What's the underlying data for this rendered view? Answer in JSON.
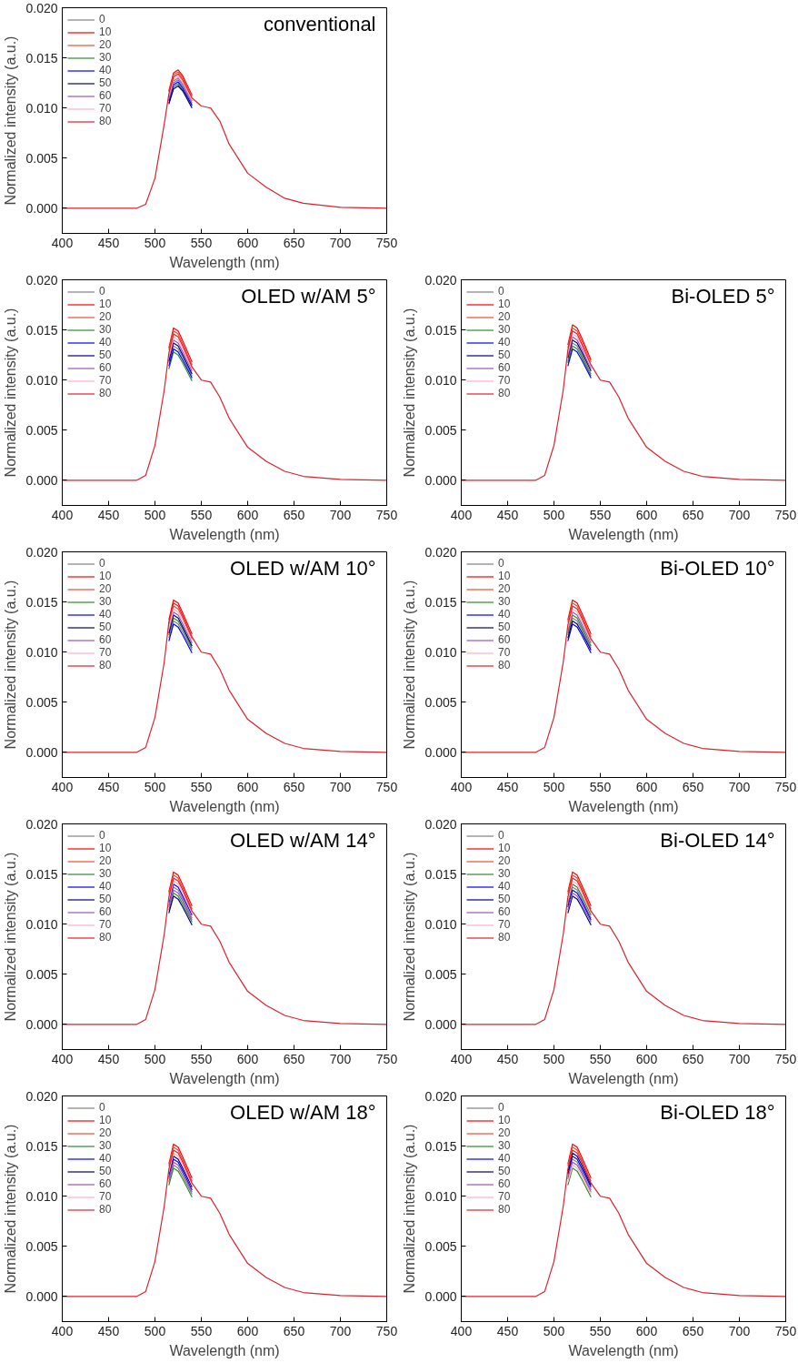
{
  "chart_data": [
    {
      "type": "line",
      "title": "conventional",
      "xlabel": "Wavelength (nm)",
      "ylabel": "Normalized intensity (a.u.)",
      "legend": "top left",
      "xlim": [
        400,
        750
      ],
      "xticks": [
        400,
        450,
        500,
        550,
        600,
        650,
        700,
        750
      ],
      "ylim": [
        -0.0025,
        0.02
      ],
      "yticks": [
        {
          "value": 0,
          "label": "0.000"
        },
        {
          "value": 0.005,
          "label": "0.005"
        },
        {
          "value": 0.01,
          "label": "0.010"
        },
        {
          "value": 0.015,
          "label": "0.015"
        },
        {
          "value": 0.02,
          "label": "0.020"
        }
      ],
      "x": [
        400,
        480,
        490,
        500,
        510,
        515,
        520,
        525,
        530,
        540,
        550,
        560,
        570,
        580,
        600,
        620,
        640,
        660,
        700,
        750
      ],
      "series": [
        {
          "name": "0",
          "color": "#808080",
          "x": [
            515,
            520,
            525,
            530,
            540
          ],
          "values": [
            0.0111,
            0.0127,
            0.013,
            0.0124,
            0.0107
          ]
        },
        {
          "name": "10",
          "color": "#ff0000",
          "x": [
            515,
            520,
            525,
            530,
            540
          ],
          "values": [
            0.0117,
            0.0135,
            0.0138,
            0.0132,
            0.0113
          ]
        },
        {
          "name": "20",
          "color": "#f04b32",
          "x": [
            515,
            520,
            525,
            530,
            540
          ],
          "values": [
            0.0116,
            0.0133,
            0.0136,
            0.013,
            0.0112
          ]
        },
        {
          "name": "30",
          "color": "#2e8b2e",
          "x": [
            515,
            520,
            525,
            530,
            540
          ],
          "values": [
            0.0105,
            0.0121,
            0.0124,
            0.0118,
            0.0102
          ]
        },
        {
          "name": "40",
          "color": "#0000ff",
          "x": [
            515,
            520,
            525,
            530,
            540
          ],
          "values": [
            0.0107,
            0.0123,
            0.0126,
            0.012,
            0.0103
          ]
        },
        {
          "name": "50",
          "color": "#000080",
          "x": [
            515,
            520,
            525,
            530,
            540
          ],
          "values": [
            0.0104,
            0.0119,
            0.0122,
            0.0117,
            0.01
          ]
        },
        {
          "name": "60",
          "color": "#9955bb",
          "x": [
            515,
            520,
            525,
            530,
            540
          ],
          "values": [
            0.0109,
            0.0125,
            0.0128,
            0.0122,
            0.0105
          ]
        },
        {
          "name": "70",
          "color": "#ffb0c4",
          "x": [
            515,
            520,
            525,
            530,
            540
          ],
          "values": [
            0.0112,
            0.0129,
            0.0132,
            0.0126,
            0.0108
          ]
        },
        {
          "name": "80",
          "color": "#e0202c",
          "values": [
            0,
            0,
            0.0004,
            0.003,
            0.0084,
            0.0114,
            0.0131,
            0.0134,
            0.0128,
            0.011,
            0.0102,
            0.01,
            0.0087,
            0.0064,
            0.0035,
            0.0021,
            0.001,
            0.0005,
            0.0001,
            0
          ]
        }
      ]
    },
    {
      "type": "line",
      "title": "OLED w/AM 5°",
      "xlabel": "Wavelength (nm)",
      "ylabel": "Normalized intensity (a.u.)",
      "legend": "top left",
      "xlim": [
        400,
        750
      ],
      "xticks": [
        400,
        450,
        500,
        550,
        600,
        650,
        700,
        750
      ],
      "ylim": [
        -0.0025,
        0.02
      ],
      "yticks": [
        {
          "value": 0,
          "label": "0.000"
        },
        {
          "value": 0.005,
          "label": "0.005"
        },
        {
          "value": 0.01,
          "label": "0.010"
        },
        {
          "value": 0.015,
          "label": "0.015"
        },
        {
          "value": 0.02,
          "label": "0.020"
        }
      ],
      "x": [
        400,
        480,
        490,
        500,
        510,
        515,
        520,
        525,
        530,
        540,
        550,
        560,
        570,
        580,
        600,
        620,
        640,
        660,
        700,
        750
      ],
      "series": [
        {
          "name": "0",
          "color": "#808080",
          "x": [
            515,
            520,
            525,
            530,
            540
          ],
          "values": [
            0.0117,
            0.0134,
            0.0131,
            0.0123,
            0.0104
          ]
        },
        {
          "name": "10",
          "color": "#ff0000",
          "x": [
            515,
            520,
            525,
            530,
            540
          ],
          "values": [
            0.0132,
            0.0152,
            0.0149,
            0.0139,
            0.0118
          ]
        },
        {
          "name": "20",
          "color": "#f04b32",
          "x": [
            515,
            520,
            525,
            530,
            540
          ],
          "values": [
            0.013,
            0.0149,
            0.0146,
            0.0136,
            0.0115
          ]
        },
        {
          "name": "30",
          "color": "#2e8b2e",
          "x": [
            515,
            520,
            525,
            530,
            540
          ],
          "values": [
            0.0111,
            0.0128,
            0.0125,
            0.0117,
            0.0099
          ]
        },
        {
          "name": "40",
          "color": "#0000ff",
          "x": [
            515,
            520,
            525,
            530,
            540
          ],
          "values": [
            0.0114,
            0.0131,
            0.0128,
            0.012,
            0.0102
          ]
        },
        {
          "name": "50",
          "color": "#000080",
          "x": [
            515,
            520,
            525,
            530,
            540
          ],
          "values": [
            0.0119,
            0.0137,
            0.0134,
            0.0125,
            0.0106
          ]
        },
        {
          "name": "60",
          "color": "#9955bb",
          "x": [
            515,
            520,
            525,
            530,
            540
          ],
          "values": [
            0.0122,
            0.014,
            0.0137,
            0.0128,
            0.0109
          ]
        },
        {
          "name": "70",
          "color": "#ffb0c4",
          "x": [
            515,
            520,
            525,
            530,
            540
          ],
          "values": [
            0.0124,
            0.0143,
            0.014,
            0.0131,
            0.0111
          ]
        },
        {
          "name": "80",
          "color": "#e0202c",
          "values": [
            0,
            0,
            0.0005,
            0.0035,
            0.009,
            0.0127,
            0.0146,
            0.0143,
            0.0134,
            0.0113,
            0.01,
            0.0098,
            0.0083,
            0.0062,
            0.0033,
            0.0019,
            0.0009,
            0.0004,
            0.0001,
            0
          ]
        }
      ]
    },
    {
      "type": "line",
      "title": "Bi-OLED 5°",
      "xlabel": "Wavelength (nm)",
      "ylabel": "Normalized intensity (a.u.)",
      "legend": "top left",
      "xlim": [
        400,
        750
      ],
      "xticks": [
        400,
        450,
        500,
        550,
        600,
        650,
        700,
        750
      ],
      "ylim": [
        -0.0025,
        0.02
      ],
      "yticks": [
        {
          "value": 0,
          "label": "0.000"
        },
        {
          "value": 0.005,
          "label": "0.005"
        },
        {
          "value": 0.01,
          "label": "0.010"
        },
        {
          "value": 0.015,
          "label": "0.015"
        },
        {
          "value": 0.02,
          "label": "0.020"
        }
      ],
      "x": [
        400,
        480,
        490,
        500,
        510,
        515,
        520,
        525,
        530,
        540,
        550,
        560,
        570,
        580,
        600,
        620,
        640,
        660,
        700,
        750
      ],
      "series": [
        {
          "name": "0",
          "color": "#808080",
          "x": [
            515,
            520,
            525,
            530,
            540
          ],
          "values": [
            0.0119,
            0.0137,
            0.0134,
            0.0125,
            0.0106
          ]
        },
        {
          "name": "10",
          "color": "#ff0000",
          "x": [
            515,
            520,
            525,
            530,
            540
          ],
          "values": [
            0.0135,
            0.0155,
            0.0152,
            0.0142,
            0.012
          ]
        },
        {
          "name": "20",
          "color": "#f04b32",
          "x": [
            515,
            520,
            525,
            530,
            540
          ],
          "values": [
            0.0132,
            0.0152,
            0.0149,
            0.0139,
            0.0118
          ]
        },
        {
          "name": "30",
          "color": "#2e8b2e",
          "x": [
            515,
            520,
            525,
            530,
            540
          ],
          "values": [
            0.0117,
            0.0134,
            0.0131,
            0.0123,
            0.0104
          ]
        },
        {
          "name": "40",
          "color": "#0000ff",
          "x": [
            515,
            520,
            525,
            530,
            540
          ],
          "values": [
            0.0114,
            0.0131,
            0.0128,
            0.012,
            0.0102
          ]
        },
        {
          "name": "50",
          "color": "#000080",
          "x": [
            515,
            520,
            525,
            530,
            540
          ],
          "values": [
            0.0122,
            0.014,
            0.0137,
            0.0128,
            0.0109
          ]
        },
        {
          "name": "60",
          "color": "#9955bb",
          "x": [
            515,
            520,
            525,
            530,
            540
          ],
          "values": [
            0.0124,
            0.0143,
            0.014,
            0.0131,
            0.0111
          ]
        },
        {
          "name": "70",
          "color": "#ffb0c4",
          "x": [
            515,
            520,
            525,
            530,
            540
          ],
          "values": [
            0.0127,
            0.0146,
            0.0143,
            0.0134,
            0.0113
          ]
        },
        {
          "name": "80",
          "color": "#e0202c",
          "values": [
            0,
            0,
            0.0005,
            0.0035,
            0.009,
            0.013,
            0.0149,
            0.0146,
            0.0136,
            0.0115,
            0.01,
            0.0098,
            0.0083,
            0.0062,
            0.0033,
            0.0019,
            0.0009,
            0.0004,
            0.0001,
            0
          ]
        }
      ]
    },
    {
      "type": "line",
      "title": "OLED w/AM 10°",
      "xlabel": "Wavelength (nm)",
      "ylabel": "Normalized intensity (a.u.)",
      "legend": "top left",
      "xlim": [
        400,
        750
      ],
      "xticks": [
        400,
        450,
        500,
        550,
        600,
        650,
        700,
        750
      ],
      "ylim": [
        -0.0025,
        0.02
      ],
      "yticks": [
        {
          "value": 0,
          "label": "0.000"
        },
        {
          "value": 0.005,
          "label": "0.005"
        },
        {
          "value": 0.01,
          "label": "0.010"
        },
        {
          "value": 0.015,
          "label": "0.015"
        },
        {
          "value": 0.02,
          "label": "0.020"
        }
      ],
      "x": [
        400,
        480,
        490,
        500,
        510,
        515,
        520,
        525,
        530,
        540,
        550,
        560,
        570,
        580,
        600,
        620,
        640,
        660,
        700,
        750
      ],
      "series": [
        {
          "name": "0",
          "color": "#808080",
          "x": [
            515,
            520,
            525,
            530,
            540
          ],
          "values": [
            0.0114,
            0.0131,
            0.0128,
            0.012,
            0.0102
          ]
        },
        {
          "name": "10",
          "color": "#ff0000",
          "x": [
            515,
            520,
            525,
            530,
            540
          ],
          "values": [
            0.0132,
            0.0152,
            0.0149,
            0.0139,
            0.0118
          ]
        },
        {
          "name": "20",
          "color": "#f04b32",
          "x": [
            515,
            520,
            525,
            530,
            540
          ],
          "values": [
            0.0127,
            0.0146,
            0.0143,
            0.0134,
            0.0113
          ]
        },
        {
          "name": "30",
          "color": "#2e8b2e",
          "x": [
            515,
            520,
            525,
            530,
            540
          ],
          "values": [
            0.0117,
            0.0134,
            0.0131,
            0.0123,
            0.0104
          ]
        },
        {
          "name": "40",
          "color": "#0000ff",
          "x": [
            515,
            520,
            525,
            530,
            540
          ],
          "values": [
            0.0111,
            0.0128,
            0.0125,
            0.0117,
            0.0099
          ]
        },
        {
          "name": "50",
          "color": "#000080",
          "x": [
            515,
            520,
            525,
            530,
            540
          ],
          "values": [
            0.0119,
            0.0137,
            0.0134,
            0.0125,
            0.0106
          ]
        },
        {
          "name": "60",
          "color": "#9955bb",
          "x": [
            515,
            520,
            525,
            530,
            540
          ],
          "values": [
            0.0122,
            0.014,
            0.0137,
            0.0128,
            0.0109
          ]
        },
        {
          "name": "70",
          "color": "#ffb0c4",
          "x": [
            515,
            520,
            525,
            530,
            540
          ],
          "values": [
            0.0124,
            0.0143,
            0.014,
            0.0131,
            0.0111
          ]
        },
        {
          "name": "80",
          "color": "#e0202c",
          "values": [
            0,
            0,
            0.0005,
            0.0035,
            0.009,
            0.013,
            0.0149,
            0.0146,
            0.0136,
            0.0115,
            0.01,
            0.0098,
            0.0083,
            0.0062,
            0.0033,
            0.0019,
            0.0009,
            0.0004,
            0.0001,
            0
          ]
        }
      ]
    },
    {
      "type": "line",
      "title": "Bi-OLED 10°",
      "xlabel": "Wavelength (nm)",
      "ylabel": "Normalized intensity (a.u.)",
      "legend": "top left",
      "xlim": [
        400,
        750
      ],
      "xticks": [
        400,
        450,
        500,
        550,
        600,
        650,
        700,
        750
      ],
      "ylim": [
        -0.0025,
        0.02
      ],
      "yticks": [
        {
          "value": 0,
          "label": "0.000"
        },
        {
          "value": 0.005,
          "label": "0.005"
        },
        {
          "value": 0.01,
          "label": "0.010"
        },
        {
          "value": 0.015,
          "label": "0.015"
        },
        {
          "value": 0.02,
          "label": "0.020"
        }
      ],
      "x": [
        400,
        480,
        490,
        500,
        510,
        515,
        520,
        525,
        530,
        540,
        550,
        560,
        570,
        580,
        600,
        620,
        640,
        660,
        700,
        750
      ],
      "series": [
        {
          "name": "0",
          "color": "#808080",
          "x": [
            515,
            520,
            525,
            530,
            540
          ],
          "values": [
            0.0117,
            0.0134,
            0.0131,
            0.0123,
            0.0104
          ]
        },
        {
          "name": "10",
          "color": "#ff0000",
          "x": [
            515,
            520,
            525,
            530,
            540
          ],
          "values": [
            0.0132,
            0.0152,
            0.0149,
            0.0139,
            0.0118
          ]
        },
        {
          "name": "20",
          "color": "#f04b32",
          "x": [
            515,
            520,
            525,
            530,
            540
          ],
          "values": [
            0.013,
            0.0149,
            0.0146,
            0.0136,
            0.0115
          ]
        },
        {
          "name": "30",
          "color": "#2e8b2e",
          "x": [
            515,
            520,
            525,
            530,
            540
          ],
          "values": [
            0.0119,
            0.0137,
            0.0134,
            0.0125,
            0.0106
          ]
        },
        {
          "name": "40",
          "color": "#0000ff",
          "x": [
            515,
            520,
            525,
            530,
            540
          ],
          "values": [
            0.0111,
            0.0128,
            0.0125,
            0.0117,
            0.0099
          ]
        },
        {
          "name": "50",
          "color": "#000080",
          "x": [
            515,
            520,
            525,
            530,
            540
          ],
          "values": [
            0.0114,
            0.0131,
            0.0128,
            0.012,
            0.0102
          ]
        },
        {
          "name": "60",
          "color": "#9955bb",
          "x": [
            515,
            520,
            525,
            530,
            540
          ],
          "values": [
            0.0122,
            0.014,
            0.0137,
            0.0128,
            0.0109
          ]
        },
        {
          "name": "70",
          "color": "#ffb0c4",
          "x": [
            515,
            520,
            525,
            530,
            540
          ],
          "values": [
            0.0124,
            0.0143,
            0.014,
            0.0131,
            0.0111
          ]
        },
        {
          "name": "80",
          "color": "#e0202c",
          "values": [
            0,
            0,
            0.0005,
            0.0035,
            0.009,
            0.0127,
            0.0146,
            0.0143,
            0.0134,
            0.0113,
            0.01,
            0.0098,
            0.0083,
            0.0062,
            0.0033,
            0.0019,
            0.0009,
            0.0004,
            0.0001,
            0
          ]
        }
      ]
    },
    {
      "type": "line",
      "title": "OLED w/AM 14°",
      "xlabel": "Wavelength (nm)",
      "ylabel": "Normalized intensity (a.u.)",
      "legend": "top left",
      "xlim": [
        400,
        750
      ],
      "xticks": [
        400,
        450,
        500,
        550,
        600,
        650,
        700,
        750
      ],
      "ylim": [
        -0.0025,
        0.02
      ],
      "yticks": [
        {
          "value": 0,
          "label": "0.000"
        },
        {
          "value": 0.005,
          "label": "0.005"
        },
        {
          "value": 0.01,
          "label": "0.010"
        },
        {
          "value": 0.015,
          "label": "0.015"
        },
        {
          "value": 0.02,
          "label": "0.020"
        }
      ],
      "x": [
        400,
        480,
        490,
        500,
        510,
        515,
        520,
        525,
        530,
        540,
        550,
        560,
        570,
        580,
        600,
        620,
        640,
        660,
        700,
        750
      ],
      "series": [
        {
          "name": "0",
          "color": "#808080",
          "x": [
            515,
            520,
            525,
            530,
            540
          ],
          "values": [
            0.0119,
            0.0137,
            0.0134,
            0.0125,
            0.0106
          ]
        },
        {
          "name": "10",
          "color": "#ff0000",
          "x": [
            515,
            520,
            525,
            530,
            540
          ],
          "values": [
            0.0132,
            0.0152,
            0.0149,
            0.0139,
            0.0118
          ]
        },
        {
          "name": "20",
          "color": "#f04b32",
          "x": [
            515,
            520,
            525,
            530,
            540
          ],
          "values": [
            0.013,
            0.0149,
            0.0146,
            0.0136,
            0.0115
          ]
        },
        {
          "name": "30",
          "color": "#2e8b2e",
          "x": [
            515,
            520,
            525,
            530,
            540
          ],
          "values": [
            0.0114,
            0.0131,
            0.0128,
            0.012,
            0.0102
          ]
        },
        {
          "name": "40",
          "color": "#0000ff",
          "x": [
            515,
            520,
            525,
            530,
            540
          ],
          "values": [
            0.0122,
            0.014,
            0.0137,
            0.0128,
            0.0109
          ]
        },
        {
          "name": "50",
          "color": "#000080",
          "x": [
            515,
            520,
            525,
            530,
            540
          ],
          "values": [
            0.0111,
            0.0128,
            0.0125,
            0.0117,
            0.0099
          ]
        },
        {
          "name": "60",
          "color": "#9955bb",
          "x": [
            515,
            520,
            525,
            530,
            540
          ],
          "values": [
            0.0117,
            0.0134,
            0.0131,
            0.0123,
            0.0104
          ]
        },
        {
          "name": "70",
          "color": "#ffb0c4",
          "x": [
            515,
            520,
            525,
            530,
            540
          ],
          "values": [
            0.0124,
            0.0143,
            0.014,
            0.0131,
            0.0111
          ]
        },
        {
          "name": "80",
          "color": "#e0202c",
          "values": [
            0,
            0,
            0.0005,
            0.0035,
            0.009,
            0.0127,
            0.0146,
            0.0143,
            0.0134,
            0.0113,
            0.01,
            0.0098,
            0.0083,
            0.0062,
            0.0033,
            0.0019,
            0.0009,
            0.0004,
            0.0001,
            0
          ]
        }
      ]
    },
    {
      "type": "line",
      "title": "Bi-OLED 14°",
      "xlabel": "Wavelength (nm)",
      "ylabel": "Normalized intensity (a.u.)",
      "legend": "top left",
      "xlim": [
        400,
        750
      ],
      "xticks": [
        400,
        450,
        500,
        550,
        600,
        650,
        700,
        750
      ],
      "ylim": [
        -0.0025,
        0.02
      ],
      "yticks": [
        {
          "value": 0,
          "label": "0.000"
        },
        {
          "value": 0.005,
          "label": "0.005"
        },
        {
          "value": 0.01,
          "label": "0.010"
        },
        {
          "value": 0.015,
          "label": "0.015"
        },
        {
          "value": 0.02,
          "label": "0.020"
        }
      ],
      "x": [
        400,
        480,
        490,
        500,
        510,
        515,
        520,
        525,
        530,
        540,
        550,
        560,
        570,
        580,
        600,
        620,
        640,
        660,
        700,
        750
      ],
      "series": [
        {
          "name": "0",
          "color": "#808080",
          "x": [
            515,
            520,
            525,
            530,
            540
          ],
          "values": [
            0.0119,
            0.0137,
            0.0134,
            0.0125,
            0.0106
          ]
        },
        {
          "name": "10",
          "color": "#ff0000",
          "x": [
            515,
            520,
            525,
            530,
            540
          ],
          "values": [
            0.0132,
            0.0152,
            0.0149,
            0.0139,
            0.0118
          ]
        },
        {
          "name": "20",
          "color": "#f04b32",
          "x": [
            515,
            520,
            525,
            530,
            540
          ],
          "values": [
            0.013,
            0.0149,
            0.0146,
            0.0136,
            0.0115
          ]
        },
        {
          "name": "30",
          "color": "#2e8b2e",
          "x": [
            515,
            520,
            525,
            530,
            540
          ],
          "values": [
            0.0122,
            0.014,
            0.0137,
            0.0128,
            0.0109
          ]
        },
        {
          "name": "40",
          "color": "#0000ff",
          "x": [
            515,
            520,
            525,
            530,
            540
          ],
          "values": [
            0.0117,
            0.0134,
            0.0131,
            0.0123,
            0.0104
          ]
        },
        {
          "name": "50",
          "color": "#000080",
          "x": [
            515,
            520,
            525,
            530,
            540
          ],
          "values": [
            0.0111,
            0.0128,
            0.0125,
            0.0117,
            0.0099
          ]
        },
        {
          "name": "60",
          "color": "#9955bb",
          "x": [
            515,
            520,
            525,
            530,
            540
          ],
          "values": [
            0.0114,
            0.0131,
            0.0128,
            0.012,
            0.0102
          ]
        },
        {
          "name": "70",
          "color": "#ffb0c4",
          "x": [
            515,
            520,
            525,
            530,
            540
          ],
          "values": [
            0.0124,
            0.0143,
            0.014,
            0.0131,
            0.0111
          ]
        },
        {
          "name": "80",
          "color": "#e0202c",
          "values": [
            0,
            0,
            0.0005,
            0.0035,
            0.009,
            0.0127,
            0.0146,
            0.0143,
            0.0134,
            0.0113,
            0.01,
            0.0098,
            0.0083,
            0.0062,
            0.0033,
            0.0019,
            0.0009,
            0.0004,
            0.0001,
            0
          ]
        }
      ]
    },
    {
      "type": "line",
      "title": "OLED w/AM 18°",
      "xlabel": "Wavelength (nm)",
      "ylabel": "Normalized intensity (a.u.)",
      "legend": "top left",
      "xlim": [
        400,
        750
      ],
      "xticks": [
        400,
        450,
        500,
        550,
        600,
        650,
        700,
        750
      ],
      "ylim": [
        -0.0025,
        0.02
      ],
      "yticks": [
        {
          "value": 0,
          "label": "0.000"
        },
        {
          "value": 0.005,
          "label": "0.005"
        },
        {
          "value": 0.01,
          "label": "0.010"
        },
        {
          "value": 0.015,
          "label": "0.015"
        },
        {
          "value": 0.02,
          "label": "0.020"
        }
      ],
      "x": [
        400,
        480,
        490,
        500,
        510,
        515,
        520,
        525,
        530,
        540,
        550,
        560,
        570,
        580,
        600,
        620,
        640,
        660,
        700,
        750
      ],
      "series": [
        {
          "name": "0",
          "color": "#808080",
          "x": [
            515,
            520,
            525,
            530,
            540
          ],
          "values": [
            0.0114,
            0.0131,
            0.0128,
            0.012,
            0.0102
          ]
        },
        {
          "name": "10",
          "color": "#ff0000",
          "x": [
            515,
            520,
            525,
            530,
            540
          ],
          "values": [
            0.0132,
            0.0152,
            0.0149,
            0.0139,
            0.0118
          ]
        },
        {
          "name": "20",
          "color": "#f04b32",
          "x": [
            515,
            520,
            525,
            530,
            540
          ],
          "values": [
            0.013,
            0.0149,
            0.0146,
            0.0136,
            0.0115
          ]
        },
        {
          "name": "30",
          "color": "#2e8b2e",
          "x": [
            515,
            520,
            525,
            530,
            540
          ],
          "values": [
            0.0111,
            0.0128,
            0.0125,
            0.0117,
            0.0099
          ]
        },
        {
          "name": "40",
          "color": "#0000ff",
          "x": [
            515,
            520,
            525,
            530,
            540
          ],
          "values": [
            0.0119,
            0.0137,
            0.0134,
            0.0125,
            0.0106
          ]
        },
        {
          "name": "50",
          "color": "#000080",
          "x": [
            515,
            520,
            525,
            530,
            540
          ],
          "values": [
            0.0122,
            0.014,
            0.0137,
            0.0128,
            0.0109
          ]
        },
        {
          "name": "60",
          "color": "#9955bb",
          "x": [
            515,
            520,
            525,
            530,
            540
          ],
          "values": [
            0.0117,
            0.0134,
            0.0131,
            0.0123,
            0.0104
          ]
        },
        {
          "name": "70",
          "color": "#ffb0c4",
          "x": [
            515,
            520,
            525,
            530,
            540
          ],
          "values": [
            0.0124,
            0.0143,
            0.014,
            0.0131,
            0.0111
          ]
        },
        {
          "name": "80",
          "color": "#e0202c",
          "values": [
            0,
            0,
            0.0005,
            0.0035,
            0.009,
            0.0127,
            0.0146,
            0.0143,
            0.0134,
            0.0113,
            0.01,
            0.0098,
            0.0083,
            0.0062,
            0.0033,
            0.0019,
            0.0009,
            0.0004,
            0.0001,
            0
          ]
        }
      ]
    },
    {
      "type": "line",
      "title": "Bi-OLED 18°",
      "xlabel": "Wavelength (nm)",
      "ylabel": "Normalized intensity (a.u.)",
      "legend": "top left",
      "xlim": [
        400,
        750
      ],
      "xticks": [
        400,
        450,
        500,
        550,
        600,
        650,
        700,
        750
      ],
      "ylim": [
        -0.0025,
        0.02
      ],
      "yticks": [
        {
          "value": 0,
          "label": "0.000"
        },
        {
          "value": 0.005,
          "label": "0.005"
        },
        {
          "value": 0.01,
          "label": "0.010"
        },
        {
          "value": 0.015,
          "label": "0.015"
        },
        {
          "value": 0.02,
          "label": "0.020"
        }
      ],
      "x": [
        400,
        480,
        490,
        500,
        510,
        515,
        520,
        525,
        530,
        540,
        550,
        560,
        570,
        580,
        600,
        620,
        640,
        660,
        700,
        750
      ],
      "series": [
        {
          "name": "0",
          "color": "#808080",
          "x": [
            515,
            520,
            525,
            530,
            540
          ],
          "values": [
            0.0119,
            0.0137,
            0.0134,
            0.0125,
            0.0106
          ]
        },
        {
          "name": "10",
          "color": "#ff0000",
          "x": [
            515,
            520,
            525,
            530,
            540
          ],
          "values": [
            0.0132,
            0.0152,
            0.0149,
            0.0139,
            0.0118
          ]
        },
        {
          "name": "20",
          "color": "#f04b32",
          "x": [
            515,
            520,
            525,
            530,
            540
          ],
          "values": [
            0.013,
            0.0149,
            0.0146,
            0.0136,
            0.0115
          ]
        },
        {
          "name": "30",
          "color": "#2e8b2e",
          "x": [
            515,
            520,
            525,
            530,
            540
          ],
          "values": [
            0.0111,
            0.0128,
            0.0125,
            0.0117,
            0.0099
          ]
        },
        {
          "name": "40",
          "color": "#0000ff",
          "x": [
            515,
            520,
            525,
            530,
            540
          ],
          "values": [
            0.0122,
            0.014,
            0.0137,
            0.0128,
            0.0109
          ]
        },
        {
          "name": "50",
          "color": "#000080",
          "x": [
            515,
            520,
            525,
            530,
            540
          ],
          "values": [
            0.0124,
            0.0143,
            0.014,
            0.0131,
            0.0111
          ]
        },
        {
          "name": "60",
          "color": "#9955bb",
          "x": [
            515,
            520,
            525,
            530,
            540
          ],
          "values": [
            0.0117,
            0.0134,
            0.0131,
            0.0123,
            0.0104
          ]
        },
        {
          "name": "70",
          "color": "#ffb0c4",
          "x": [
            515,
            520,
            525,
            530,
            540
          ],
          "values": [
            0.0114,
            0.0131,
            0.0128,
            0.012,
            0.0102
          ]
        },
        {
          "name": "80",
          "color": "#e0202c",
          "values": [
            0,
            0,
            0.0005,
            0.0035,
            0.009,
            0.0127,
            0.0146,
            0.0143,
            0.0134,
            0.0113,
            0.01,
            0.0098,
            0.0083,
            0.0062,
            0.0033,
            0.0019,
            0.0009,
            0.0004,
            0.0001,
            0
          ]
        }
      ]
    }
  ]
}
